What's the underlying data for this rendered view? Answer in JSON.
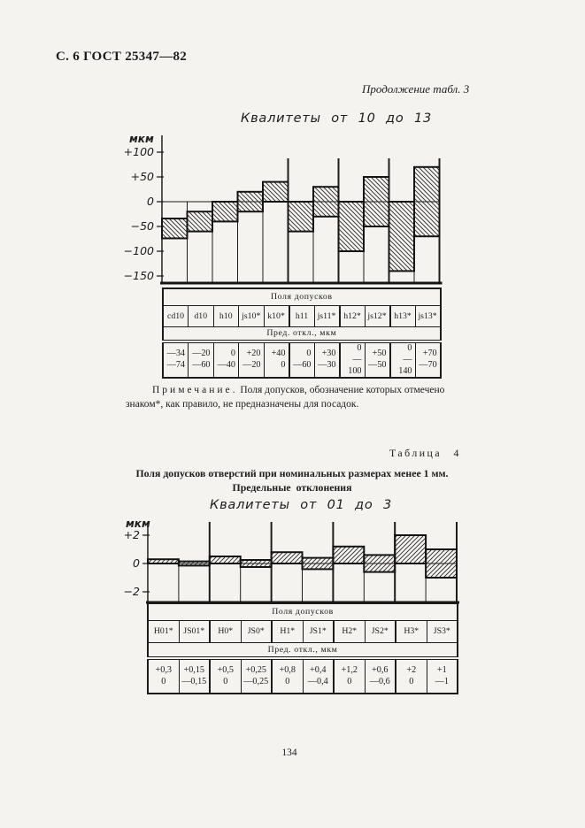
{
  "page": {
    "header": "С. 6 ГОСТ 25347—82",
    "continuation_note": "Продолжение табл. 3",
    "page_number": "134"
  },
  "section1": {
    "chart_title": "Квалитеты от 10 до 13",
    "table": {
      "fields_header": "Поля допусков",
      "deviation_header": "Пред. откл., мкм",
      "columns": [
        "cd10",
        "d10",
        "h10",
        "js10*",
        "k10*",
        "h11",
        "js11*",
        "h12*",
        "js12*",
        "h13*",
        "js13*"
      ],
      "values": [
        [
          "—34",
          "—74"
        ],
        [
          "—20",
          "—60"
        ],
        [
          "0",
          "—40"
        ],
        [
          "+20",
          "—20"
        ],
        [
          "+40",
          "0"
        ],
        [
          "0",
          "—60"
        ],
        [
          "+30",
          "—30"
        ],
        [
          "0",
          "—100"
        ],
        [
          "+50",
          "—50"
        ],
        [
          "0",
          "—140"
        ],
        [
          "+70",
          "—70"
        ]
      ]
    },
    "note_label": "Примечание.",
    "note_text": "Поля допусков, обозначение которых отмечено знаком*, как правило, не предназначены для посадок."
  },
  "section2": {
    "table_label": "Таблица 4",
    "heading_line1": "Поля допусков отверстий при номинальных размерах менее 1 мм.",
    "heading_line2": "Предельные отклонения",
    "chart_title": "Квалитеты от 01 до 3",
    "table": {
      "fields_header": "Поля допусков",
      "deviation_header": "Пред. откл., мкм",
      "columns": [
        "H01*",
        "JS01*",
        "H0*",
        "JS0*",
        "H1*",
        "JS1*",
        "H2*",
        "JS2*",
        "H3*",
        "JS3*"
      ],
      "values": [
        [
          "+0,3",
          "0"
        ],
        [
          "+0,15",
          "—0,15"
        ],
        [
          "+0,5",
          "0"
        ],
        [
          "+0,25",
          "—0,25"
        ],
        [
          "+0,8",
          "0"
        ],
        [
          "+0,4",
          "—0,4"
        ],
        [
          "+1,2",
          "0"
        ],
        [
          "+0,6",
          "—0,6"
        ],
        [
          "+2",
          "0"
        ],
        [
          "+1",
          "—1"
        ]
      ]
    }
  },
  "chart_data": [
    {
      "type": "bar",
      "title": "Квалитеты от 10 до 13",
      "ylabel": "мкм",
      "categories": [
        "cd10",
        "d10",
        "h10",
        "js10*",
        "k10*",
        "h11",
        "js11*",
        "h12*",
        "js12*",
        "h13*",
        "js13*"
      ],
      "series": [
        {
          "name": "upper deviation, мкм",
          "values": [
            -34,
            -20,
            0,
            20,
            40,
            0,
            30,
            0,
            50,
            0,
            70
          ]
        },
        {
          "name": "lower deviation, мкм",
          "values": [
            -74,
            -60,
            -40,
            -20,
            0,
            -60,
            -30,
            -100,
            -50,
            -140,
            -70
          ]
        }
      ],
      "yticks": [
        {
          "label": "+100",
          "value": 100
        },
        {
          "label": "+50",
          "value": 50
        },
        {
          "label": "0",
          "value": 0
        },
        {
          "label": "−50",
          "value": -50
        },
        {
          "label": "−100",
          "value": -100
        },
        {
          "label": "−150",
          "value": -150
        }
      ],
      "ylim": [
        -160,
        110
      ],
      "grid": false,
      "bar_style": "hatched tolerance-zone range bars",
      "hatch_direction": "\\",
      "tall_separator_boundaries": [
        5,
        7,
        9,
        11
      ]
    },
    {
      "type": "bar",
      "title": "Квалитеты от 01 до 3",
      "ylabel": "мкм",
      "categories": [
        "H01*",
        "JS01*",
        "H0*",
        "JS0*",
        "H1*",
        "JS1*",
        "H2*",
        "JS2*",
        "H3*",
        "JS3*"
      ],
      "series": [
        {
          "name": "upper deviation, мкм",
          "values": [
            0.3,
            0.15,
            0.5,
            0.25,
            0.8,
            0.4,
            1.2,
            0.6,
            2,
            1
          ]
        },
        {
          "name": "lower deviation, мкм",
          "values": [
            0,
            -0.15,
            0,
            -0.25,
            0,
            -0.4,
            0,
            -0.6,
            0,
            -1
          ]
        }
      ],
      "yticks": [
        {
          "label": "+2",
          "value": 2
        },
        {
          "label": "0",
          "value": 0
        },
        {
          "label": "−2",
          "value": -2
        }
      ],
      "ylim": [
        -2.8,
        2.6
      ],
      "grid": false,
      "bar_style": "hatched tolerance-zone range bars",
      "hatch_direction": "/",
      "tall_separator_boundaries": [
        2,
        4,
        6,
        8,
        10
      ]
    }
  ]
}
